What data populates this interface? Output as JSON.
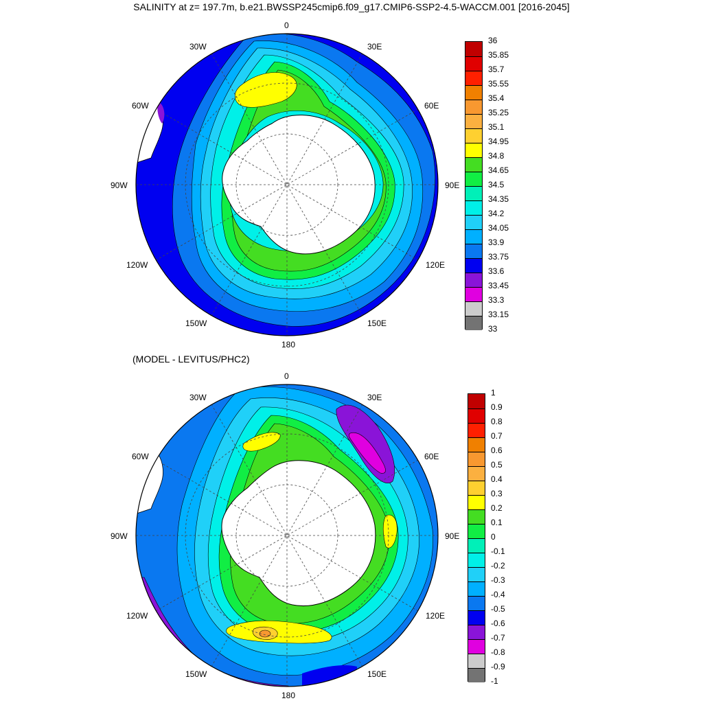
{
  "title": "SALINITY at z= 197.7m, b.e21.BWSSP245cmip6.f09_g17.CMIP6-SSP2-4.5-WACCM.001 [2016-2045]",
  "subtitle": "(MODEL - LEVITUS/PHC2)",
  "longitude_labels": {
    "top": "0",
    "tr": "30E",
    "tl": "30W",
    "r60": "60E",
    "l60": "60W",
    "r90": "90E",
    "l90": "90W",
    "r120": "120E",
    "l120": "120W",
    "br": "150E",
    "bl": "150W",
    "bottom": "180"
  },
  "colorbar_top": {
    "labels": [
      "36",
      "35.85",
      "35.7",
      "35.55",
      "35.4",
      "35.25",
      "35.1",
      "34.95",
      "34.8",
      "34.65",
      "34.5",
      "34.35",
      "34.2",
      "34.05",
      "33.9",
      "33.75",
      "33.6",
      "33.45",
      "33.3",
      "33.15",
      "33"
    ],
    "colors": [
      "#c00000",
      "#e00000",
      "#ff2000",
      "#f08000",
      "#f89830",
      "#fbb040",
      "#fed030",
      "#ffff00",
      "#44dd22",
      "#11ee44",
      "#00f0b8",
      "#00f0e8",
      "#20d0f8",
      "#00b0ff",
      "#0a78f0",
      "#0000f0",
      "#8a14d8",
      "#e000e0",
      "#cccccc",
      "#737373"
    ]
  },
  "colorbar_bottom": {
    "labels": [
      "1",
      "0.9",
      "0.8",
      "0.7",
      "0.6",
      "0.5",
      "0.4",
      "0.3",
      "0.2",
      "0.1",
      "0",
      "-0.1",
      "-0.2",
      "-0.3",
      "-0.4",
      "-0.5",
      "-0.6",
      "-0.7",
      "-0.8",
      "-0.9",
      "-1"
    ],
    "colors": [
      "#c00000",
      "#e00000",
      "#ff2000",
      "#f08000",
      "#f89830",
      "#fbb040",
      "#fed030",
      "#ffff00",
      "#44dd22",
      "#11ee44",
      "#00f0b8",
      "#00f0e8",
      "#20d0f8",
      "#00b0ff",
      "#0a78f0",
      "#0000f0",
      "#8a14d8",
      "#e000e0",
      "#cccccc",
      "#737373"
    ]
  }
}
